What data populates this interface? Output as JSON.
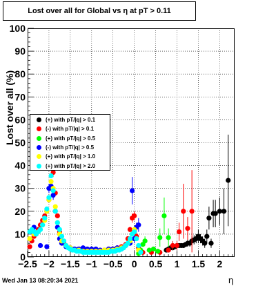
{
  "chart_data": {
    "type": "scatter",
    "title": "Lost over all for Global vs   η at pT > 0.11",
    "xlabel": "η",
    "ylabel": "Lost over all (%)",
    "xlim": [
      -2.5,
      2.35
    ],
    "ylim": [
      0,
      100
    ],
    "x_ticks": [
      "−2.5",
      "−2",
      "−1.5",
      "−1",
      "−0.5",
      "0",
      "0.5",
      "1",
      "1.5",
      "2"
    ],
    "y_ticks": [
      "0",
      "10",
      "20",
      "30",
      "40",
      "50",
      "60",
      "70",
      "80",
      "90",
      "100"
    ],
    "grid": true,
    "legend_position": "left-middle",
    "footer": "Wed Jan 13 08:20:34 2021",
    "series": [
      {
        "name": "(+) with pT/|q| > 0.1",
        "color": "#000000",
        "points": [
          [
            0.75,
            3
          ],
          [
            0.8,
            3.5
          ],
          [
            0.85,
            4
          ],
          [
            0.9,
            4
          ],
          [
            0.95,
            4.5
          ],
          [
            1.0,
            5
          ],
          [
            1.05,
            5
          ],
          [
            1.1,
            5
          ],
          [
            1.15,
            5
          ],
          [
            1.2,
            5.5
          ],
          [
            1.25,
            6
          ],
          [
            1.3,
            6
          ],
          [
            1.35,
            7
          ],
          [
            1.4,
            7.5
          ],
          [
            1.45,
            8
          ],
          [
            1.5,
            9
          ],
          [
            1.55,
            8
          ],
          [
            1.6,
            7
          ],
          [
            1.65,
            6
          ],
          [
            1.7,
            9
          ],
          [
            1.75,
            17
          ],
          [
            1.8,
            6
          ],
          [
            1.85,
            19
          ],
          [
            1.9,
            19
          ],
          [
            2.0,
            20
          ],
          [
            2.1,
            20
          ],
          [
            2.2,
            33.5
          ]
        ],
        "errors": [
          1,
          1,
          1,
          1,
          1,
          1,
          1,
          1,
          1,
          1,
          1.5,
          1.5,
          2,
          2,
          2,
          3,
          2,
          2,
          2,
          3,
          5,
          2,
          6,
          6,
          6,
          10,
          20
        ]
      },
      {
        "name": "(-) with pT/|q| > 0.1",
        "color": "#ff0000",
        "points": [
          [
            -2.45,
            4.5
          ],
          [
            -2.4,
            7
          ],
          [
            -2.35,
            9
          ],
          [
            -2.3,
            10
          ],
          [
            -2.25,
            12
          ],
          [
            -2.2,
            14
          ],
          [
            -2.15,
            16
          ],
          [
            -2.1,
            18
          ],
          [
            -2.05,
            20
          ],
          [
            -2.0,
            25
          ],
          [
            -1.95,
            30
          ],
          [
            -1.9,
            37
          ],
          [
            -1.85,
            28
          ],
          [
            -1.8,
            18
          ],
          [
            -1.75,
            11
          ],
          [
            -1.7,
            7
          ],
          [
            -1.65,
            6
          ],
          [
            -1.6,
            5
          ],
          [
            -1.5,
            4
          ],
          [
            -1.4,
            3.5
          ],
          [
            -1.3,
            3.5
          ],
          [
            -1.2,
            3.5
          ],
          [
            -1.1,
            3
          ],
          [
            -1.0,
            3
          ],
          [
            -0.9,
            3
          ],
          [
            -0.8,
            3
          ],
          [
            -0.7,
            3
          ],
          [
            -0.6,
            3.5
          ],
          [
            -0.5,
            3.5
          ],
          [
            -0.4,
            4
          ],
          [
            -0.3,
            4.5
          ],
          [
            -0.2,
            5.5
          ],
          [
            -0.15,
            8
          ],
          [
            -0.1,
            12
          ],
          [
            -0.05,
            17
          ],
          [
            0.0,
            18
          ],
          [
            0.05,
            9
          ],
          [
            0.1,
            4
          ],
          [
            0.2,
            2
          ],
          [
            0.4,
            2
          ],
          [
            0.6,
            2
          ],
          [
            0.8,
            3
          ],
          [
            0.9,
            5
          ],
          [
            1.0,
            5
          ],
          [
            1.05,
            11
          ],
          [
            1.15,
            20
          ],
          [
            1.25,
            12.5
          ],
          [
            1.35,
            20
          ]
        ],
        "errors": [
          1,
          1,
          1,
          1,
          1,
          1,
          1,
          1,
          1,
          1,
          1,
          2,
          1,
          1,
          1,
          1,
          1,
          1,
          1,
          1,
          1,
          1,
          1,
          1,
          1,
          1,
          1,
          1,
          1,
          1,
          1,
          1,
          1,
          1,
          2,
          2,
          2,
          1,
          1,
          1,
          1,
          1,
          2,
          2,
          4,
          12,
          5,
          18
        ]
      },
      {
        "name": "(+) with pT/|q| > 0.5",
        "color": "#00ff00",
        "points": [
          [
            0.1,
            1.5
          ],
          [
            0.15,
            3
          ],
          [
            0.2,
            5.5
          ],
          [
            0.25,
            7
          ],
          [
            0.35,
            3
          ],
          [
            0.45,
            3.5
          ],
          [
            0.55,
            2.5
          ],
          [
            0.6,
            8.5
          ],
          [
            0.7,
            18
          ],
          [
            0.8,
            8.5
          ]
        ],
        "errors": [
          1,
          1,
          1,
          2,
          1,
          1,
          1,
          4,
          8,
          4
        ]
      },
      {
        "name": "(-) with pT/|q| > 0.5",
        "color": "#0000ff",
        "points": [
          [
            -2.4,
            11
          ],
          [
            -2.35,
            13
          ],
          [
            -2.2,
            5
          ],
          [
            -2.05,
            4.5
          ],
          [
            -2.0,
            30
          ],
          [
            -1.95,
            31
          ],
          [
            -1.9,
            27
          ],
          [
            -1.85,
            20
          ],
          [
            -1.8,
            13
          ],
          [
            -1.75,
            8
          ],
          [
            -1.7,
            6
          ],
          [
            -1.6,
            4.5
          ],
          [
            -1.5,
            4
          ],
          [
            -1.4,
            3.5
          ],
          [
            -1.3,
            3.5
          ],
          [
            -1.2,
            4
          ],
          [
            -1.1,
            3.5
          ],
          [
            -1.0,
            3.5
          ],
          [
            -0.9,
            3.5
          ],
          [
            -0.8,
            3
          ],
          [
            -0.7,
            3
          ],
          [
            -0.6,
            3.5
          ],
          [
            -0.5,
            3.5
          ],
          [
            -0.4,
            4
          ],
          [
            -0.3,
            3.5
          ],
          [
            -0.2,
            5
          ],
          [
            -0.1,
            6
          ],
          [
            -0.05,
            29
          ],
          [
            0.0,
            8
          ],
          [
            0.05,
            13
          ],
          [
            0.1,
            14
          ]
        ],
        "errors": [
          1,
          1,
          1,
          1,
          2,
          2,
          2,
          1,
          1,
          1,
          1,
          1,
          1,
          1,
          1,
          1,
          1,
          1,
          1,
          1,
          1,
          1,
          1,
          1,
          1,
          1,
          1,
          6,
          2,
          2,
          3
        ]
      },
      {
        "name": "(+) with pT/|q| > 1.0",
        "color": "#ffff00",
        "points": [
          [
            -2.45,
            8
          ],
          [
            -2.35,
            10
          ],
          [
            -2.25,
            11
          ],
          [
            -2.15,
            14
          ],
          [
            -2.1,
            16
          ],
          [
            -2.05,
            20
          ],
          [
            -2.0,
            25
          ],
          [
            -1.95,
            33
          ],
          [
            -1.9,
            30
          ],
          [
            -1.85,
            22
          ],
          [
            -1.8,
            15
          ],
          [
            -1.75,
            10
          ],
          [
            -1.7,
            7
          ],
          [
            -1.6,
            5
          ],
          [
            -1.5,
            4
          ],
          [
            -1.4,
            3
          ],
          [
            -1.3,
            3
          ],
          [
            -1.2,
            2.5
          ],
          [
            -1.1,
            2.5
          ],
          [
            -1.0,
            2.5
          ],
          [
            -0.9,
            2.5
          ],
          [
            -0.8,
            2.5
          ],
          [
            -0.7,
            3
          ],
          [
            -0.6,
            3
          ],
          [
            -0.5,
            3
          ],
          [
            -0.4,
            3.5
          ],
          [
            -0.3,
            4
          ],
          [
            -0.2,
            5
          ],
          [
            -0.1,
            7
          ],
          [
            -0.05,
            10
          ],
          [
            0.0,
            12
          ],
          [
            0.05,
            8
          ],
          [
            0.1,
            3
          ]
        ],
        "errors": []
      },
      {
        "name": "(+) with pT/|q| > 2.0",
        "color": "#00ffff",
        "points": [
          [
            -2.45,
            11
          ],
          [
            -2.4,
            12
          ],
          [
            -2.35,
            11
          ],
          [
            -2.3,
            10
          ],
          [
            -2.25,
            11
          ],
          [
            -2.2,
            12
          ],
          [
            -2.15,
            14
          ],
          [
            -2.1,
            17
          ],
          [
            -2.05,
            21
          ],
          [
            -2.0,
            26
          ],
          [
            -1.95,
            35.5
          ],
          [
            -1.9,
            29
          ],
          [
            -1.85,
            20
          ],
          [
            -1.8,
            15
          ],
          [
            -1.75,
            12
          ],
          [
            -1.7,
            9
          ],
          [
            -1.65,
            7
          ],
          [
            -1.6,
            5
          ],
          [
            -1.55,
            4
          ],
          [
            -1.5,
            3.5
          ],
          [
            -1.45,
            3
          ],
          [
            -1.4,
            3
          ],
          [
            -1.35,
            2.5
          ],
          [
            -1.3,
            2.5
          ],
          [
            -1.25,
            2.5
          ],
          [
            -1.2,
            2
          ],
          [
            -1.15,
            2
          ],
          [
            -1.1,
            2
          ],
          [
            -1.05,
            2
          ],
          [
            -1.0,
            2
          ],
          [
            -0.95,
            2
          ],
          [
            -0.9,
            2
          ],
          [
            -0.85,
            2
          ],
          [
            -0.8,
            2
          ],
          [
            -0.75,
            2
          ],
          [
            -0.7,
            2
          ],
          [
            -0.65,
            2
          ],
          [
            -0.6,
            2
          ],
          [
            -0.55,
            2.5
          ],
          [
            -0.5,
            2.5
          ],
          [
            -0.45,
            2.5
          ],
          [
            -0.4,
            3
          ],
          [
            -0.35,
            3
          ],
          [
            -0.3,
            3.5
          ],
          [
            -0.25,
            4
          ],
          [
            -0.2,
            5
          ],
          [
            -0.15,
            6
          ],
          [
            -0.1,
            8
          ],
          [
            -0.05,
            10
          ],
          [
            0.0,
            11
          ],
          [
            0.05,
            8
          ],
          [
            0.1,
            5
          ],
          [
            0.15,
            2
          ]
        ],
        "errors": []
      }
    ]
  }
}
